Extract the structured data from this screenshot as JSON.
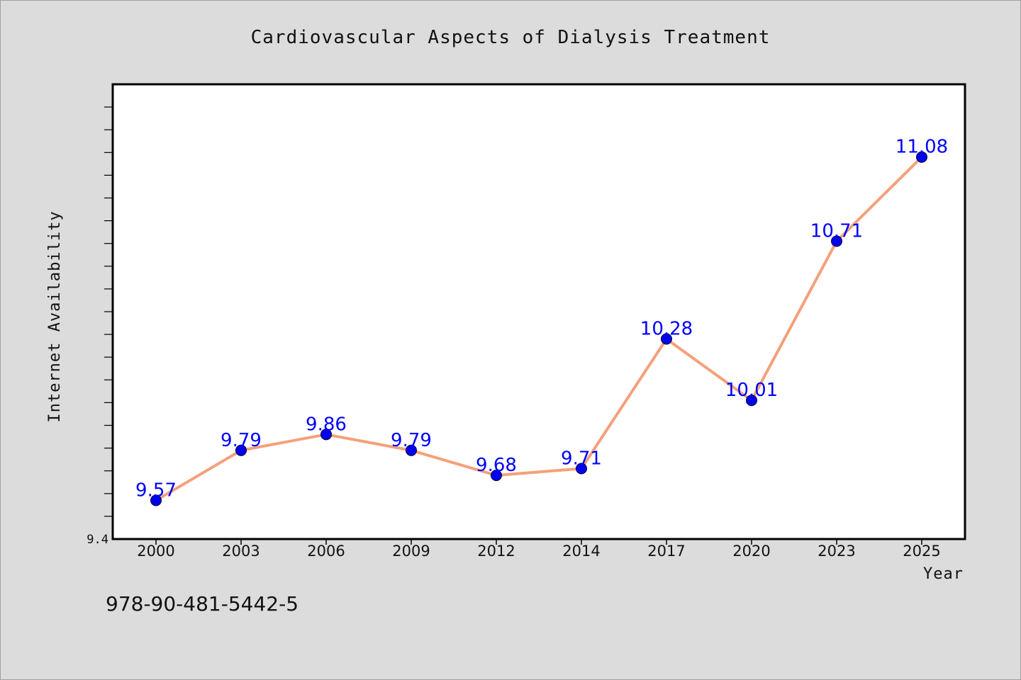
{
  "chart_data": {
    "type": "line",
    "title": "Cardiovascular Aspects of Dialysis Treatment",
    "xlabel": "Year",
    "ylabel": "Internet Availability",
    "categories": [
      "2000",
      "2003",
      "2006",
      "2009",
      "2012",
      "2014",
      "2017",
      "2020",
      "2023",
      "2025"
    ],
    "series": [
      {
        "values": [
          9.57,
          9.79,
          9.86,
          9.79,
          9.68,
          9.71,
          10.28,
          10.01,
          10.71,
          11.08
        ]
      }
    ],
    "data_labels": [
      "9.57",
      "9.79",
      "9.86",
      "9.79",
      "9.68",
      "9.71",
      "10.28",
      "10.01",
      "10.71",
      "11.08"
    ],
    "ylim": [
      9.4,
      11.4
    ],
    "y_tick_labels": [
      {
        "value": 9.4,
        "label": "9.4"
      }
    ],
    "y_minor_tick_step": 0.1,
    "grid": false,
    "line_color": "#f5a07a",
    "marker_color": "#0000ee",
    "label_color": "#0000ff",
    "background_color": "#dcdcdc",
    "plot_background_color": "#ffffff"
  },
  "footer": {
    "code": "978-90-481-5442-5"
  }
}
